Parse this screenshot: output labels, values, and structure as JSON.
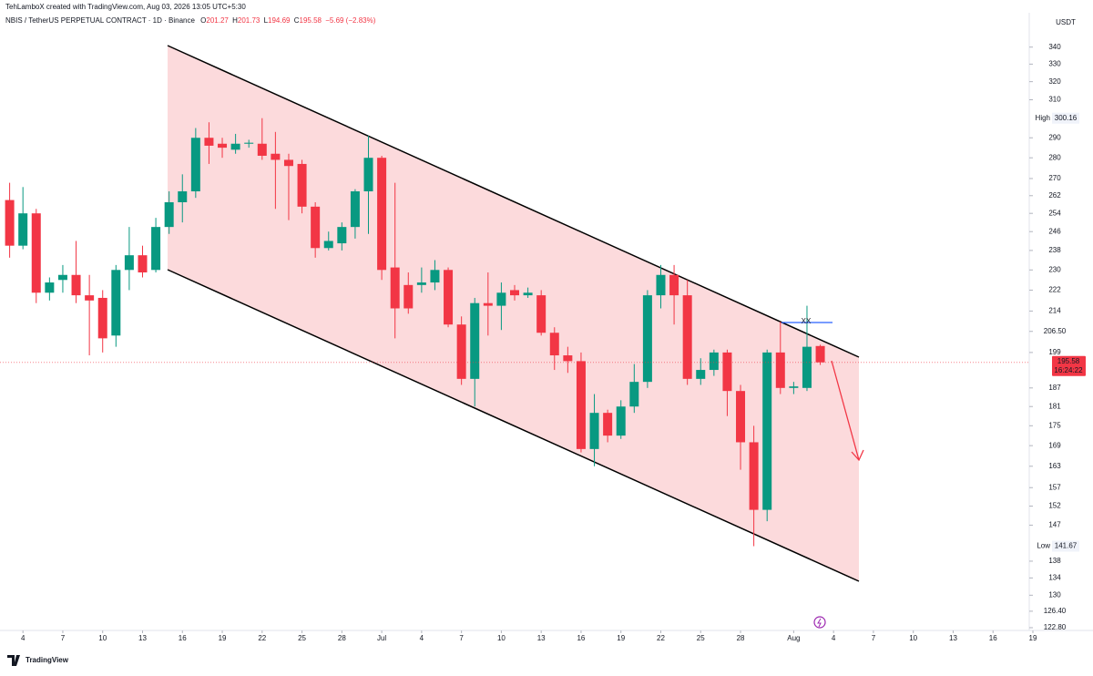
{
  "header": {
    "credit": "TehLamboX created with TradingView.com, Aug 03, 2026 13:05 UTC+5:30",
    "brand": "TradingView"
  },
  "chart_data": {
    "type": "candlestick",
    "symbol": "NBIS / TetherUS PERPETUAL CONTRACT · 1D · Binance",
    "ohlc_letters": [
      "O",
      "H",
      "L",
      "C"
    ],
    "change_text": "−5.69 (−2.83%)",
    "unit": "USDT",
    "annotation": "XX",
    "countdown": "16:24:22",
    "high_text": "High",
    "low_text": "Low",
    "high_index": 19,
    "low_index": 56,
    "up_color": "#089981",
    "down_color": "#f23645",
    "log_scale": true,
    "x": [
      "2026-06-03",
      "2026-06-04",
      "2026-06-05",
      "2026-06-06",
      "2026-06-07",
      "2026-06-08",
      "2026-06-09",
      "2026-06-10",
      "2026-06-11",
      "2026-06-12",
      "2026-06-13",
      "2026-06-14",
      "2026-06-15",
      "2026-06-16",
      "2026-06-17",
      "2026-06-18",
      "2026-06-19",
      "2026-06-20",
      "2026-06-21",
      "2026-06-22",
      "2026-06-23",
      "2026-06-24",
      "2026-06-25",
      "2026-06-26",
      "2026-06-27",
      "2026-06-28",
      "2026-06-29",
      "2026-06-30",
      "2026-07-01",
      "2026-07-02",
      "2026-07-03",
      "2026-07-04",
      "2026-07-05",
      "2026-07-06",
      "2026-07-07",
      "2026-07-08",
      "2026-07-09",
      "2026-07-10",
      "2026-07-11",
      "2026-07-12",
      "2026-07-13",
      "2026-07-14",
      "2026-07-15",
      "2026-07-16",
      "2026-07-17",
      "2026-07-18",
      "2026-07-19",
      "2026-07-20",
      "2026-07-21",
      "2026-07-22",
      "2026-07-23",
      "2026-07-24",
      "2026-07-25",
      "2026-07-26",
      "2026-07-27",
      "2026-07-28",
      "2026-07-29",
      "2026-07-30",
      "2026-07-31",
      "2026-08-01",
      "2026-08-02",
      "2026-08-03"
    ],
    "open": [
      260,
      240,
      254,
      221,
      226,
      228,
      220,
      219,
      205,
      230,
      236,
      230,
      248,
      259,
      264,
      290,
      287,
      284,
      287,
      287,
      282,
      279,
      277,
      257,
      239,
      241,
      248,
      264,
      280,
      231,
      224,
      224,
      225,
      230,
      209,
      190,
      217,
      216,
      222,
      220,
      220,
      206,
      198,
      196,
      168,
      179,
      172,
      181,
      189,
      220,
      228,
      220,
      190,
      193,
      199,
      186,
      170,
      151,
      199,
      187,
      187,
      201.27
    ],
    "high": [
      268,
      266,
      256,
      227,
      232,
      242,
      228,
      222,
      232,
      248,
      240,
      252,
      264,
      272,
      295,
      298,
      290,
      292,
      289,
      300.16,
      293,
      282,
      279,
      259,
      246,
      250,
      265,
      291,
      281,
      268,
      229,
      231,
      234,
      231,
      212,
      219,
      229,
      225,
      224,
      223,
      222,
      208,
      201,
      199,
      185,
      180,
      183,
      195,
      222,
      232,
      232,
      226,
      197,
      200,
      200,
      188,
      175,
      200,
      210,
      189,
      216,
      201.73
    ],
    "low": [
      235,
      238.5,
      217,
      218,
      221,
      217,
      198,
      199,
      201,
      222,
      227,
      229,
      245,
      250,
      261,
      277,
      280,
      282,
      285,
      279,
      256,
      251,
      254,
      235,
      238,
      238,
      243,
      245,
      226,
      204,
      213,
      221,
      222,
      208,
      188,
      181,
      205,
      207,
      218,
      219,
      205,
      193,
      192,
      167,
      163,
      170,
      171,
      179,
      187,
      215,
      209,
      188,
      188,
      191,
      178,
      162,
      141.67,
      148,
      185,
      185,
      186,
      194.69
    ],
    "close": [
      240,
      254,
      221,
      225,
      228,
      220,
      218,
      204,
      230,
      236,
      229,
      248,
      259,
      264,
      290,
      286,
      285,
      287,
      287.5,
      281,
      279,
      276,
      257,
      239,
      242,
      248,
      264,
      280,
      230,
      215,
      215,
      225,
      230,
      209,
      190,
      217,
      216,
      221,
      220,
      221,
      206,
      198,
      196,
      168,
      179,
      172,
      181,
      189,
      220,
      228,
      220,
      190,
      193,
      199,
      186,
      170,
      151,
      199,
      187,
      187.5,
      201,
      195.58
    ],
    "xlim": [
      "2026-06-02",
      "2026-08-19"
    ],
    "xticks": [
      {
        "value": "2026-06-04",
        "label": "4"
      },
      {
        "value": "2026-06-07",
        "label": "7"
      },
      {
        "value": "2026-06-10",
        "label": "10"
      },
      {
        "value": "2026-06-13",
        "label": "13"
      },
      {
        "value": "2026-06-16",
        "label": "16"
      },
      {
        "value": "2026-06-19",
        "label": "19"
      },
      {
        "value": "2026-06-22",
        "label": "22"
      },
      {
        "value": "2026-06-25",
        "label": "25"
      },
      {
        "value": "2026-06-28",
        "label": "28"
      },
      {
        "value": "2026-07-01",
        "label": "Jul"
      },
      {
        "value": "2026-07-04",
        "label": "4"
      },
      {
        "value": "2026-07-07",
        "label": "7"
      },
      {
        "value": "2026-07-10",
        "label": "10"
      },
      {
        "value": "2026-07-13",
        "label": "13"
      },
      {
        "value": "2026-07-16",
        "label": "16"
      },
      {
        "value": "2026-07-19",
        "label": "19"
      },
      {
        "value": "2026-07-22",
        "label": "22"
      },
      {
        "value": "2026-07-25",
        "label": "25"
      },
      {
        "value": "2026-07-28",
        "label": "28"
      },
      {
        "value": "2026-08-01",
        "label": "Aug"
      },
      {
        "value": "2026-08-04",
        "label": "4"
      },
      {
        "value": "2026-08-07",
        "label": "7"
      },
      {
        "value": "2026-08-10",
        "label": "10"
      },
      {
        "value": "2026-08-13",
        "label": "13"
      },
      {
        "value": "2026-08-16",
        "label": "16"
      },
      {
        "value": "2026-08-19",
        "label": "19"
      }
    ],
    "ylim": [
      122.6,
      352
    ],
    "yticks": [
      340,
      330,
      320,
      310,
      290,
      280,
      270,
      262,
      254,
      246,
      238,
      230,
      222,
      214,
      {
        "value": 206.5,
        "label": "206.50"
      },
      199,
      187,
      181,
      175,
      169,
      163,
      157,
      152,
      147,
      138,
      134,
      130,
      {
        "value": 126.4,
        "label": "126.40"
      },
      {
        "value": 122.8,
        "label": "122.80"
      }
    ]
  }
}
